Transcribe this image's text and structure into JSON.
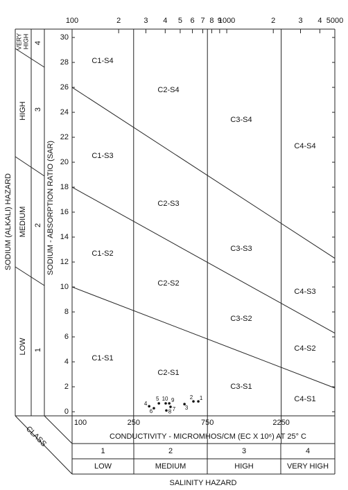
{
  "chart_data": {
    "type": "scatter",
    "x_label": "CONDUCTIVITY - MICROMHOS/CM  (EC X 10⁶) AT 25° C",
    "y_label": "SODIUM - ABSORPTION RATIO (SAR)",
    "log_x": true,
    "xlim": [
      100,
      5000
    ],
    "ylim": [
      -0.33,
      30.67
    ],
    "xticks_top": [
      100,
      {
        "value": 200,
        "label": "2"
      },
      {
        "value": 300,
        "label": "3"
      },
      {
        "value": 400,
        "label": "4"
      },
      {
        "value": 500,
        "label": "5"
      },
      {
        "value": 600,
        "label": "6"
      },
      {
        "value": 700,
        "label": "7"
      },
      {
        "value": 800,
        "label": "8"
      },
      {
        "value": 900,
        "label": "9"
      },
      1000,
      {
        "value": 2000,
        "label": "2"
      },
      {
        "value": 3000,
        "label": "3"
      },
      {
        "value": 4000,
        "label": "4"
      },
      5000
    ],
    "xticks": [
      100,
      250,
      750,
      2250
    ],
    "yticks": [
      0,
      2,
      4,
      6,
      8,
      10,
      12,
      14,
      16,
      18,
      20,
      22,
      24,
      26,
      28,
      30
    ],
    "boundaries": [
      {
        "x": [
          100,
          5000
        ],
        "y": [
          26,
          12.3
        ]
      },
      {
        "x": [
          100,
          5000
        ],
        "y": [
          18,
          6.3
        ]
      },
      {
        "x": [
          100,
          5000
        ],
        "y": [
          10,
          1.9
        ]
      }
    ],
    "regions": [
      "C1-S4",
      "C2-S4",
      "C3-S4",
      "C4-S4",
      "C1-S3",
      "C2-S3",
      "C3-S3",
      "C4-S3",
      "C1-S2",
      "C2-S2",
      "C3-S2",
      "C4-S2",
      "C1-S1",
      "C2-S1",
      "C3-S1",
      "C4-S1"
    ],
    "series": [
      {
        "color": "#111111",
        "x": [
          655,
          609,
          533,
          315,
          364,
          338,
          433,
          407,
          425,
          403
        ],
        "values": [
          0.83,
          0.83,
          0.61,
          0.44,
          0.67,
          0.28,
          0.39,
          0.1,
          0.67,
          0.67
        ],
        "point_labels": [
          1,
          2,
          3,
          4,
          5,
          6,
          7,
          8,
          9,
          10
        ]
      }
    ],
    "sodium_hazard": {
      "title": "SODIUM (ALKALI) HAZARD",
      "classes": [
        {
          "number": "4",
          "name": [
            "VERY",
            "HIGH"
          ]
        },
        {
          "number": "3",
          "name": [
            "HIGH"
          ]
        },
        {
          "number": "2",
          "name": [
            "MEDIUM"
          ]
        },
        {
          "number": "1",
          "name": [
            "LOW"
          ]
        }
      ]
    },
    "salinity_hazard": {
      "title": "SALINITY HAZARD",
      "class_label": "CLASS",
      "classes": [
        {
          "number": "1",
          "name": "LOW"
        },
        {
          "number": "2",
          "name": "MEDIUM"
        },
        {
          "number": "3",
          "name": "HIGH"
        },
        {
          "number": "4",
          "name": "VERY HIGH"
        }
      ]
    }
  }
}
